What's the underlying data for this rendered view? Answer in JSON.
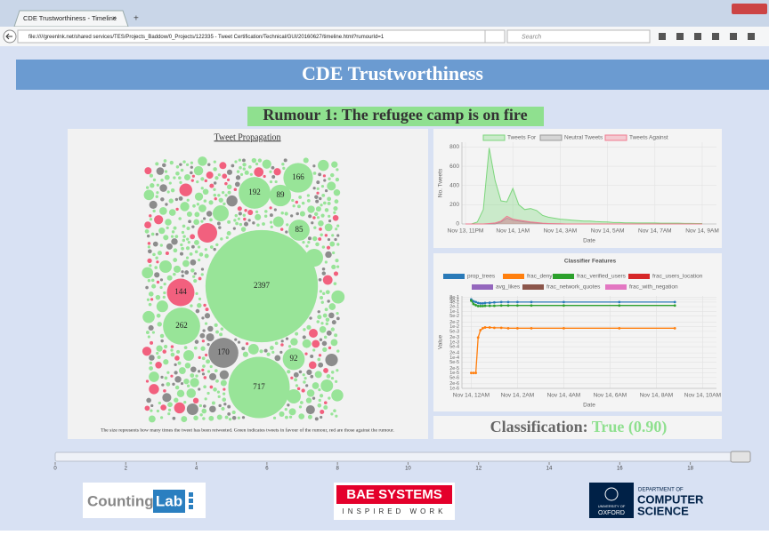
{
  "browser": {
    "tab_title": "CDE Trustworthiness - Timeline",
    "url": "file://///greenlnk.net/shared services/TES/Projects_Baddow/0_Projects/122335 - Tweet Certification/Technical/GUI/20160627/timeline.html?rumourId=1",
    "search_placeholder": "Search"
  },
  "header": {
    "title": "CDE Trustworthiness",
    "subtitle": "Rumour 1: The refugee camp is on fire"
  },
  "propagation": {
    "title": "Tweet Propagation",
    "caption": "The size represents how many times the tweet has been retweeted. Green indicates tweets in favour of the rumour, red are those against the rumour.",
    "bubbles": [
      {
        "value": 166,
        "color": "#98e498"
      },
      {
        "value": 192,
        "color": "#98e498"
      },
      {
        "value": 89,
        "color": "#98e498"
      },
      {
        "value": 85,
        "color": "#98e498"
      },
      {
        "value": 2397,
        "color": "#98e498"
      },
      {
        "value": 144,
        "color": "#f2607e"
      },
      {
        "value": 262,
        "color": "#98e498"
      },
      {
        "value": 170,
        "color": "#8c8c8c"
      },
      {
        "value": 92,
        "color": "#98e498"
      },
      {
        "value": 717,
        "color": "#98e498"
      }
    ]
  },
  "timeline": {
    "type": "line",
    "y_label": "No. Tweets",
    "x_label": "Date",
    "categories": [
      "Nov 13, 11PM",
      null,
      null,
      null,
      null,
      null,
      null,
      null,
      "Nov 14, 1AM",
      null,
      null,
      null,
      null,
      null,
      null,
      null,
      "Nov 14, 3AM",
      null,
      null,
      null,
      null,
      null,
      null,
      null,
      "Nov 14, 5AM",
      null,
      null,
      null,
      null,
      null,
      null,
      null,
      "Nov 14, 7AM",
      null,
      null,
      null,
      null,
      null,
      null,
      null,
      "Nov 14, 9AM"
    ],
    "series": [
      {
        "name": "Tweets For",
        "color": "#7cd67c",
        "values": [
          0,
          0,
          20,
          150,
          790,
          450,
          240,
          230,
          370,
          200,
          150,
          160,
          140,
          90,
          70,
          60,
          50,
          45,
          40,
          35,
          30,
          30,
          25,
          22,
          20,
          15,
          15,
          12,
          12,
          10,
          10,
          10,
          10,
          8,
          8,
          8,
          8,
          6,
          6,
          5,
          5
        ]
      },
      {
        "name": "Neutral Tweets",
        "color": "#9a9a9a",
        "values": [
          0,
          0,
          0,
          0,
          0,
          0,
          20,
          60,
          40,
          30,
          20,
          15,
          10,
          5,
          3,
          2,
          0,
          0,
          0,
          0,
          0,
          0,
          0,
          0,
          0,
          0,
          0,
          0,
          0,
          0,
          0,
          0,
          0,
          0,
          0,
          0,
          0,
          0,
          0,
          0,
          0
        ]
      },
      {
        "name": "Tweets Against",
        "color": "#f07a90",
        "values": [
          0,
          0,
          0,
          0,
          5,
          10,
          30,
          80,
          50,
          40,
          30,
          20,
          15,
          8,
          5,
          3,
          2,
          0,
          0,
          0,
          0,
          0,
          0,
          0,
          0,
          0,
          0,
          0,
          0,
          0,
          0,
          0,
          0,
          0,
          0,
          0,
          0,
          0,
          0,
          0,
          0
        ]
      }
    ],
    "ylim": [
      0,
      850
    ],
    "yticks": [
      0,
      200,
      400,
      600,
      800
    ],
    "grid": true
  },
  "features": {
    "type": "line",
    "title": "Classifier Features",
    "y_label": "Value",
    "x_label": "Date",
    "log_scale": true,
    "x": [
      0,
      0.1,
      0.2,
      0.3,
      0.4,
      0.5,
      0.6,
      0.8,
      1.0,
      1.3,
      1.6,
      2.0,
      2.6,
      4.0,
      6.4,
      8.8
    ],
    "xlim": [
      -0.4,
      10.6
    ],
    "xticks": [
      {
        "value": 0,
        "label": "Nov 14, 12AM"
      },
      {
        "value": 2,
        "label": "Nov 14, 2AM"
      },
      {
        "value": 4,
        "label": "Nov 14, 4AM"
      },
      {
        "value": 6,
        "label": "Nov 14, 6AM"
      },
      {
        "value": 8,
        "label": "Nov 14, 8AM"
      },
      {
        "value": 10,
        "label": "Nov 14, 10AM"
      }
    ],
    "ylim": [
      1e-06,
      1
    ],
    "yticks": [
      {
        "value": 0.8,
        "label": "8e-1"
      },
      {
        "value": 0.6,
        "label": "6e-1"
      },
      {
        "value": 0.4,
        "label": "4e-1"
      },
      {
        "value": 0.2,
        "label": "2e-1"
      },
      {
        "value": 0.1,
        "label": "1e-1"
      },
      {
        "value": 0.05,
        "label": "5e-2"
      },
      {
        "value": 0.02,
        "label": "2e-2"
      },
      {
        "value": 0.01,
        "label": "1e-2"
      },
      {
        "value": 0.005,
        "label": "5e-3"
      },
      {
        "value": 0.002,
        "label": "2e-3"
      },
      {
        "value": 0.001,
        "label": "1e-3"
      },
      {
        "value": 0.0005,
        "label": "5e-4"
      },
      {
        "value": 0.0002,
        "label": "2e-4"
      },
      {
        "value": 0.0001,
        "label": "1e-4"
      },
      {
        "value": 5e-05,
        "label": "5e-5"
      },
      {
        "value": 2e-05,
        "label": "2e-5"
      },
      {
        "value": 1e-05,
        "label": "1e-5"
      },
      {
        "value": 5e-06,
        "label": "5e-6"
      },
      {
        "value": 2e-06,
        "label": "2e-6"
      },
      {
        "value": 1e-06,
        "label": "1e-6"
      }
    ],
    "grid": true,
    "series": [
      {
        "name": "prop_trees",
        "color": "#2a7ab8",
        "values": [
          0.6,
          0.45,
          0.4,
          0.35,
          0.33,
          0.33,
          0.35,
          0.36,
          0.38,
          0.4,
          0.4,
          0.4,
          0.4,
          0.4,
          0.4,
          0.4
        ]
      },
      {
        "name": "frac_deny",
        "color": "#ff7f0e",
        "values": [
          1e-05,
          1e-05,
          1e-05,
          0.002,
          0.006,
          0.008,
          0.009,
          0.009,
          0.0085,
          0.0085,
          0.008,
          0.008,
          0.008,
          0.008,
          0.008,
          0.008
        ]
      },
      {
        "name": "frac_verified_users",
        "color": "#2ca02c",
        "values": [
          0.5,
          0.3,
          0.25,
          0.22,
          0.22,
          0.22,
          0.23,
          0.23,
          0.23,
          0.24,
          0.24,
          0.24,
          0.24,
          0.24,
          0.24,
          0.24
        ]
      },
      {
        "name": "frac_users_location",
        "color": "#d62728",
        "values": [
          null,
          null,
          null,
          null,
          null,
          null,
          null,
          null,
          null,
          null,
          null,
          null,
          null,
          null,
          null,
          null
        ]
      },
      {
        "name": "avg_likes",
        "color": "#9467bd",
        "values": [
          null,
          null,
          null,
          null,
          null,
          null,
          null,
          null,
          null,
          null,
          null,
          null,
          null,
          null,
          null,
          null
        ]
      },
      {
        "name": "frac_network_quotes",
        "color": "#8c564b",
        "values": [
          null,
          null,
          null,
          null,
          null,
          null,
          null,
          null,
          null,
          null,
          null,
          null,
          null,
          null,
          null,
          null
        ]
      },
      {
        "name": "frac_with_negation",
        "color": "#e377c2",
        "values": [
          null,
          null,
          null,
          null,
          null,
          null,
          null,
          null,
          null,
          null,
          null,
          null,
          null,
          null,
          null,
          null
        ]
      }
    ]
  },
  "classification": {
    "label": "Classification:",
    "result": "True (0.90)"
  },
  "slider": {
    "xlim": [
      0,
      19.7
    ],
    "xticks": [
      0,
      2,
      4,
      6,
      8,
      10,
      12,
      14,
      16,
      18
    ],
    "value": 19.7
  },
  "logos": {
    "counting": "Counting",
    "lab": "Lab",
    "bae": "BAE SYSTEMS",
    "bae_tagline": "INSPIRED WORK",
    "oxford_univ": "UNIVERSITY OF",
    "oxford": "OXFORD",
    "dept": "DEPARTMENT OF",
    "cs1": "COMPUTER",
    "cs2": "SCIENCE"
  }
}
